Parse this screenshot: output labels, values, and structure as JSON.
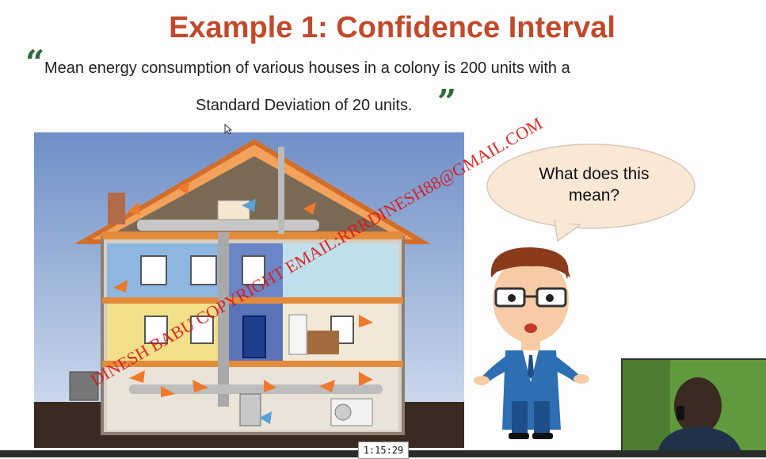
{
  "slide": {
    "title": "Example 1: Confidence Interval",
    "quote_line1": "Mean energy consumption of various houses in a colony is 200 units with a",
    "quote_line2": "Standard Deviation of 20 units.",
    "open_quote": "“",
    "close_quote": "”"
  },
  "bubble": {
    "text_line1": "What does this",
    "text_line2": "mean?"
  },
  "watermark": {
    "text": "DINESH BABU  COPYRIGHT  EMAIL:RRRDINESH88@GMAIL.COM"
  },
  "player": {
    "timestamp": "1:15:29"
  },
  "colors": {
    "title": "#c2492b",
    "quote_marks": "#2f6b3a",
    "watermark": "#e01414"
  }
}
